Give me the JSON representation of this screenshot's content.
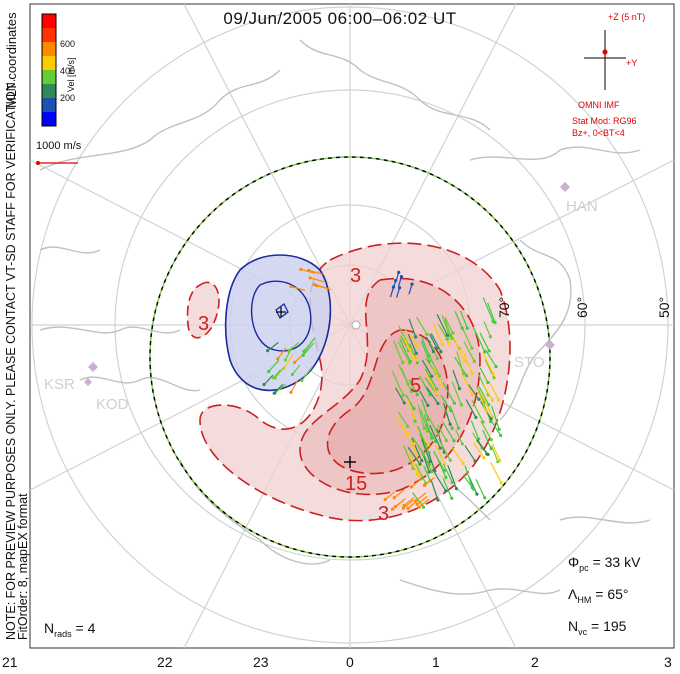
{
  "title": "09/Jun/2005 06:00–06:02 UT",
  "colorbar": {
    "label": "Vel [m/s]",
    "ticks": [
      "600",
      "400",
      "200"
    ],
    "colors": [
      "#0000ff",
      "#1e4fb4",
      "#2e8b57",
      "#66cc33",
      "#ffcc00",
      "#ff8800",
      "#ff3300",
      "#ff0000"
    ]
  },
  "coords_label": "MLT coordinates",
  "scale_label": "1000 m/s",
  "imf": {
    "z_label": "+Z (5 nT)",
    "y_label": "+Y",
    "source": "OMNI IMF",
    "model": "Stat Mod: RG96",
    "condition": "Bz+, 0<BT<4"
  },
  "note": "NOTE: FOR PREVIEW PURPOSES ONLY. PLEASE CONTACT VT-SD STAFF FOR VERIFICATION.",
  "fit_order": "FitOrder: 8, mapEX format",
  "stats": {
    "phi_pc": "Φ",
    "phi_sub": "pc",
    "phi_val": " = 33 kV",
    "lambda": "Λ",
    "lambda_sub": "HM",
    "lambda_val": " = 65°",
    "nvc": "N",
    "nvc_sub": "vc",
    "nvc_val": " = 195",
    "nrads": "N",
    "nrads_sub": "rads",
    "nrads_val": " = 4"
  },
  "lat_labels": [
    "70°",
    "60°",
    "50°"
  ],
  "stations": [
    "HAN",
    "STO",
    "KSR",
    "KOD"
  ],
  "contours": [
    "3",
    "3",
    "3",
    "5",
    "15",
    "3"
  ],
  "mlt_labels": [
    "21",
    "22",
    "23",
    "0",
    "1",
    "2",
    "3"
  ],
  "colors": {
    "positive": "#cc2020",
    "negative": "#1a2a9c",
    "geo": "#c4c4c4",
    "grid": "#d0d0d0"
  }
}
